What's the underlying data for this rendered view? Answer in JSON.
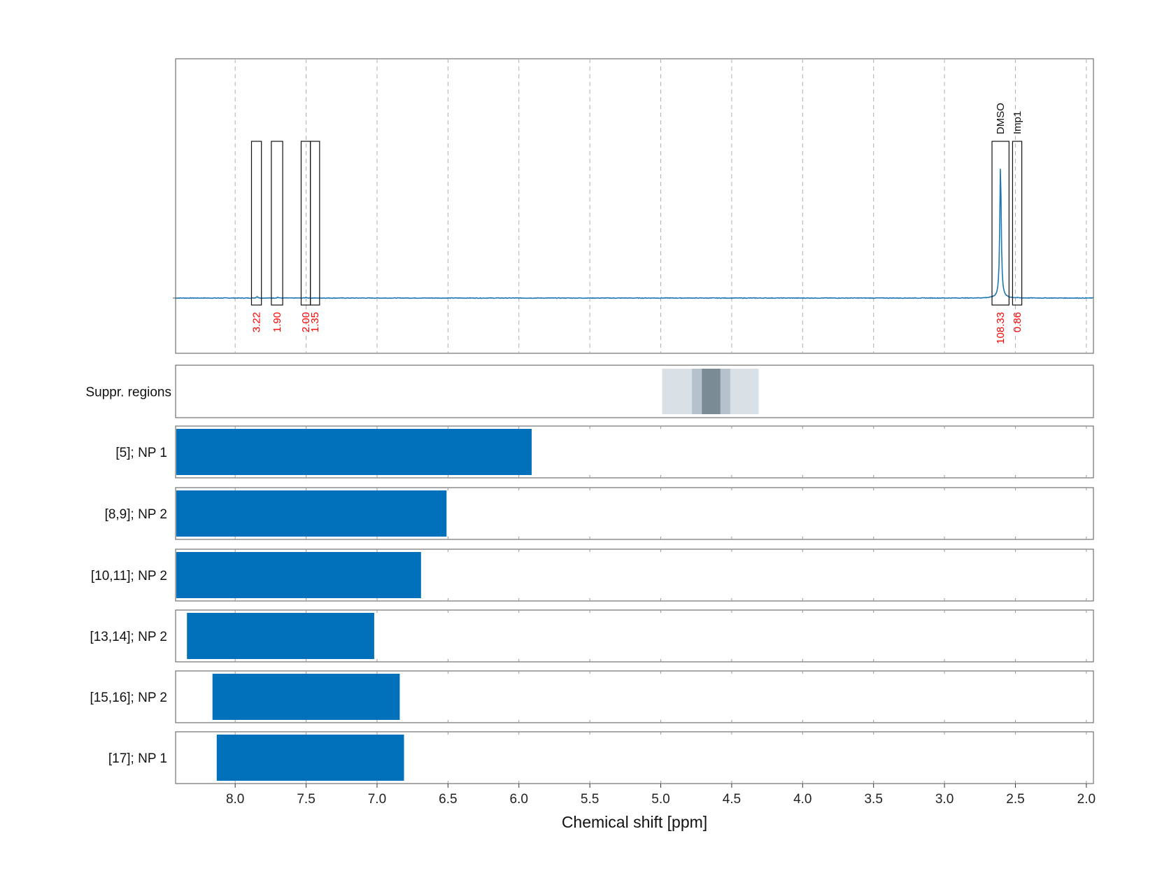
{
  "chart_data": {
    "type": "nmr-spectrum-with-range-bars",
    "xlabel": "Chemical shift [ppm]",
    "xlim": [
      8.42,
      1.95
    ],
    "xticks": [
      8.0,
      7.5,
      7.0,
      6.5,
      6.0,
      5.5,
      5.0,
      4.5,
      4.0,
      3.5,
      3.0,
      2.5,
      2.0
    ],
    "xtick_labels": [
      "8.0",
      "7.5",
      "7.0",
      "6.5",
      "6.0",
      "5.5",
      "5.0",
      "4.5",
      "4.0",
      "3.5",
      "3.0",
      "2.5",
      "2.0"
    ],
    "grid": true,
    "colors": {
      "spectrum": "#1f77b4",
      "bar": "#0070bb",
      "integral_text": "#ff0000",
      "suppr_light": "#d9e0e6",
      "suppr_mid": "#b5c2cc",
      "suppr_dark": "#7a8b96"
    },
    "spectrum": {
      "baseline": 0,
      "ymax": 1.0,
      "peaks": [
        {
          "ppm": 2.605,
          "height": 0.9,
          "width": 0.006
        },
        {
          "ppm": 7.845,
          "height": 0.012,
          "width": 0.005
        },
        {
          "ppm": 7.7,
          "height": 0.006,
          "width": 0.005
        },
        {
          "ppm": 7.5,
          "height": 0.006,
          "width": 0.005
        }
      ]
    },
    "integrals": [
      {
        "ppm_left": 7.885,
        "ppm_right": 7.815,
        "value": "3.22",
        "name": ""
      },
      {
        "ppm_left": 7.745,
        "ppm_right": 7.665,
        "value": "1.90",
        "name": ""
      },
      {
        "ppm_left": 7.535,
        "ppm_right": 7.47,
        "value": "2.00",
        "name": ""
      },
      {
        "ppm_left": 7.47,
        "ppm_right": 7.405,
        "value": "1.35",
        "name": ""
      },
      {
        "ppm_left": 2.665,
        "ppm_right": 2.545,
        "value": "108.33",
        "name": "DMSO"
      },
      {
        "ppm_left": 2.52,
        "ppm_right": 2.455,
        "value": "0.86",
        "name": "Imp1"
      }
    ],
    "suppression_label": "Suppr. regions",
    "suppression_regions": [
      {
        "from": 4.99,
        "to": 4.31,
        "level": "light"
      },
      {
        "from": 4.78,
        "to": 4.51,
        "level": "mid"
      },
      {
        "from": 4.71,
        "to": 4.58,
        "level": "dark"
      }
    ],
    "ranges": [
      {
        "label": "[5]; NP 1",
        "from": 8.42,
        "to": 5.91
      },
      {
        "label": "[8,9]; NP 2",
        "from": 8.42,
        "to": 6.51
      },
      {
        "label": "[10,11]; NP 2",
        "from": 8.42,
        "to": 6.69
      },
      {
        "label": "[13,14]; NP 2",
        "from": 8.34,
        "to": 7.02
      },
      {
        "label": "[15,16]; NP 2",
        "from": 8.16,
        "to": 6.84
      },
      {
        "label": "[17]; NP 1",
        "from": 8.13,
        "to": 6.81
      }
    ]
  }
}
